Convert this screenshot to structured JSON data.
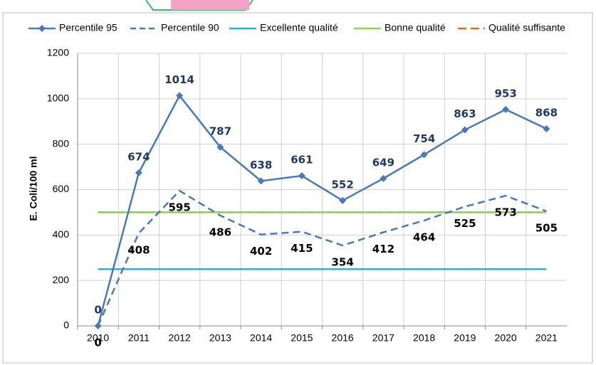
{
  "chart_data": {
    "type": "line",
    "y_label": "E. Coli/100 ml",
    "categories": [
      "2010",
      "2011",
      "2012",
      "2013",
      "2014",
      "2015",
      "2016",
      "2017",
      "2018",
      "2019",
      "2020",
      "2021"
    ],
    "series": [
      {
        "name": "Percentile 95",
        "color": "#4a7ab5",
        "style": "solid",
        "marker": "diamond",
        "data_labels": true,
        "label_color": "#1f3864",
        "label_position": "above",
        "values": [
          0,
          674,
          1014,
          787,
          638,
          661,
          552,
          649,
          754,
          863,
          953,
          868
        ]
      },
      {
        "name": "Percentile 90",
        "color": "#4a7ab5",
        "style": "dashed",
        "data_labels": true,
        "label_color": "#000000",
        "label_position": "below",
        "values": [
          0,
          408,
          595,
          486,
          402,
          415,
          354,
          412,
          464,
          525,
          573,
          505
        ]
      },
      {
        "name": "Excellente qualité",
        "color": "#1fb4e6",
        "style": "solid",
        "values": [
          250,
          250,
          250,
          250,
          250,
          250,
          250,
          250,
          250,
          250,
          250,
          250
        ]
      },
      {
        "name": "Bonne qualité",
        "color": "#92d050",
        "style": "solid",
        "values": [
          500,
          500,
          500,
          500,
          500,
          500,
          500,
          500,
          500,
          500,
          500,
          500
        ]
      },
      {
        "name": "Qualité suffisante",
        "color": "#e46c0a",
        "style": "dashed",
        "values": [
          500,
          500,
          500,
          500,
          500,
          500,
          500,
          500,
          500,
          500,
          500,
          500
        ]
      }
    ],
    "ylim": [
      0,
      1200
    ],
    "yticks": [
      0,
      200,
      400,
      600,
      800,
      1000,
      1200
    ],
    "grid": true,
    "legend": "top"
  }
}
